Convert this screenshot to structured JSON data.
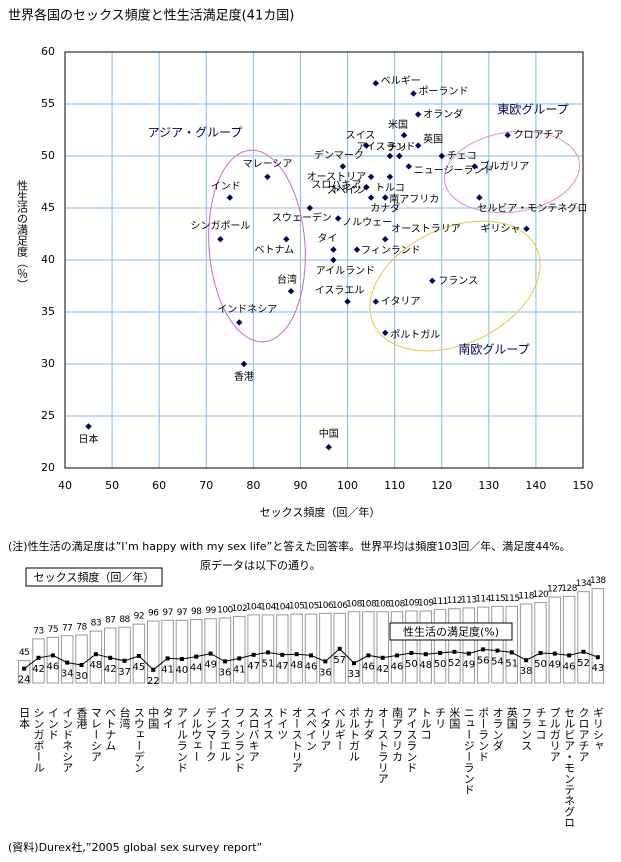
{
  "chart_data": [
    {
      "type": "scatter",
      "title": "世界各国のセックス頻度と性生活満足度(41カ国)",
      "xlabel": "セックス頻度（回／年）",
      "ylabel": "性生活の満足度（％）",
      "labels": [
        "日本",
        "シンガポール",
        "インド",
        "インドネシア",
        "香港",
        "マレーシア",
        "ベトナム",
        "台湾",
        "スウェーデン",
        "中国",
        "タイ",
        "アイルランド",
        "ノルウェー",
        "デンマーク",
        "イスラエル",
        "フィンランド",
        "スロバキア",
        "スイス",
        "ドイツ",
        "オーストリア",
        "スペイン",
        "イタリア",
        "ベルギー",
        "ポルトガル",
        "カナダ",
        "オーストラリア",
        "南アフリカ",
        "アイスランド",
        "トルコ",
        "チリ",
        "米国",
        "ニュージーランド",
        "ポーランド",
        "オランダ",
        "英国",
        "フランス",
        "チェコ",
        "ブルガリア",
        "セルビア・モンテネグロ",
        "クロアチア",
        "ギリシャ"
      ],
      "x": [
        45,
        73,
        75,
        77,
        78,
        83,
        87,
        88,
        92,
        96,
        97,
        97,
        98,
        99,
        100,
        102,
        104,
        104,
        104,
        105,
        105,
        106,
        106,
        108,
        108,
        108,
        108,
        109,
        109,
        111,
        112,
        113,
        114,
        115,
        115,
        118,
        120,
        127,
        128,
        134,
        138
      ],
      "y": [
        24,
        42,
        46,
        34,
        30,
        48,
        42,
        37,
        45,
        22,
        41,
        40,
        44,
        49,
        36,
        41,
        47,
        51,
        47,
        48,
        46,
        36,
        57,
        33,
        46,
        42,
        46,
        50,
        48,
        50,
        52,
        49,
        56,
        54,
        51,
        38,
        50,
        49,
        46,
        52,
        43
      ],
      "xlim": [
        40,
        150
      ],
      "xticks": [
        40,
        50,
        60,
        70,
        80,
        90,
        100,
        110,
        120,
        130,
        140,
        150
      ],
      "ylim": [
        20,
        60
      ],
      "yticks": [
        20,
        25,
        30,
        35,
        40,
        45,
        50,
        55,
        60
      ],
      "grid": true,
      "color": "#000066",
      "groups": [
        {
          "label": "アジア・グループ",
          "color": "#cc66cc"
        },
        {
          "label": "東欧グループ",
          "color": "#e090c8"
        },
        {
          "label": "南欧グループ",
          "color": "#e8c830"
        }
      ]
    },
    {
      "type": "bar",
      "categories": [
        "日本",
        "シンガポール",
        "インド",
        "インドネシア",
        "香港",
        "マレーシア",
        "ベトナム",
        "台湾",
        "スウェーデン",
        "中国",
        "タイ",
        "アイルランド",
        "ノルウェー",
        "デンマーク",
        "イスラエル",
        "フィンランド",
        "スロバキア",
        "スイス",
        "ドイツ",
        "オーストリア",
        "スペイン",
        "イタリア",
        "ベルギー",
        "ポルトガル",
        "カナダ",
        "オーストラリア",
        "南アフリカ",
        "アイスランド",
        "トルコ",
        "チリ",
        "米国",
        "ニュージーランド",
        "ポーランド",
        "オランダ",
        "英国",
        "フランス",
        "チェコ",
        "ブルガリア",
        "セルビア・モンテネグロ",
        "クロアチア",
        "ギリシャ"
      ],
      "series": [
        {
          "name": "セックス頻度（回／年）",
          "color": "#ffffff",
          "values": [
            45,
            73,
            75,
            77,
            78,
            83,
            87,
            88,
            92,
            96,
            97,
            97,
            98,
            99,
            100,
            102,
            104,
            104,
            104,
            105,
            105,
            106,
            106,
            108,
            108,
            108,
            108,
            109,
            109,
            111,
            112,
            113,
            114,
            115,
            115,
            118,
            120,
            127,
            128,
            134,
            138
          ]
        },
        {
          "name": "性生活の満足度(%)",
          "color": "#000000",
          "type": "line",
          "axis": "y2",
          "values": [
            24,
            42,
            46,
            34,
            30,
            48,
            42,
            37,
            45,
            22,
            41,
            40,
            44,
            49,
            36,
            41,
            47,
            51,
            47,
            48,
            46,
            36,
            57,
            33,
            46,
            42,
            46,
            50,
            48,
            50,
            52,
            49,
            56,
            54,
            51,
            38,
            50,
            49,
            46,
            52,
            43
          ]
        }
      ],
      "ylim": [
        16,
        140
      ],
      "y2lim": [
        0,
        160
      ]
    }
  ],
  "note": "(注)性生活の満足度は”I’m happy with my sex life”と答えた回答率。世界平均は頻度103回／年、満足度44%。",
  "intro": "原データは以下の通り。",
  "source": "(資料)Durex社,”2005 global sex survey report”"
}
